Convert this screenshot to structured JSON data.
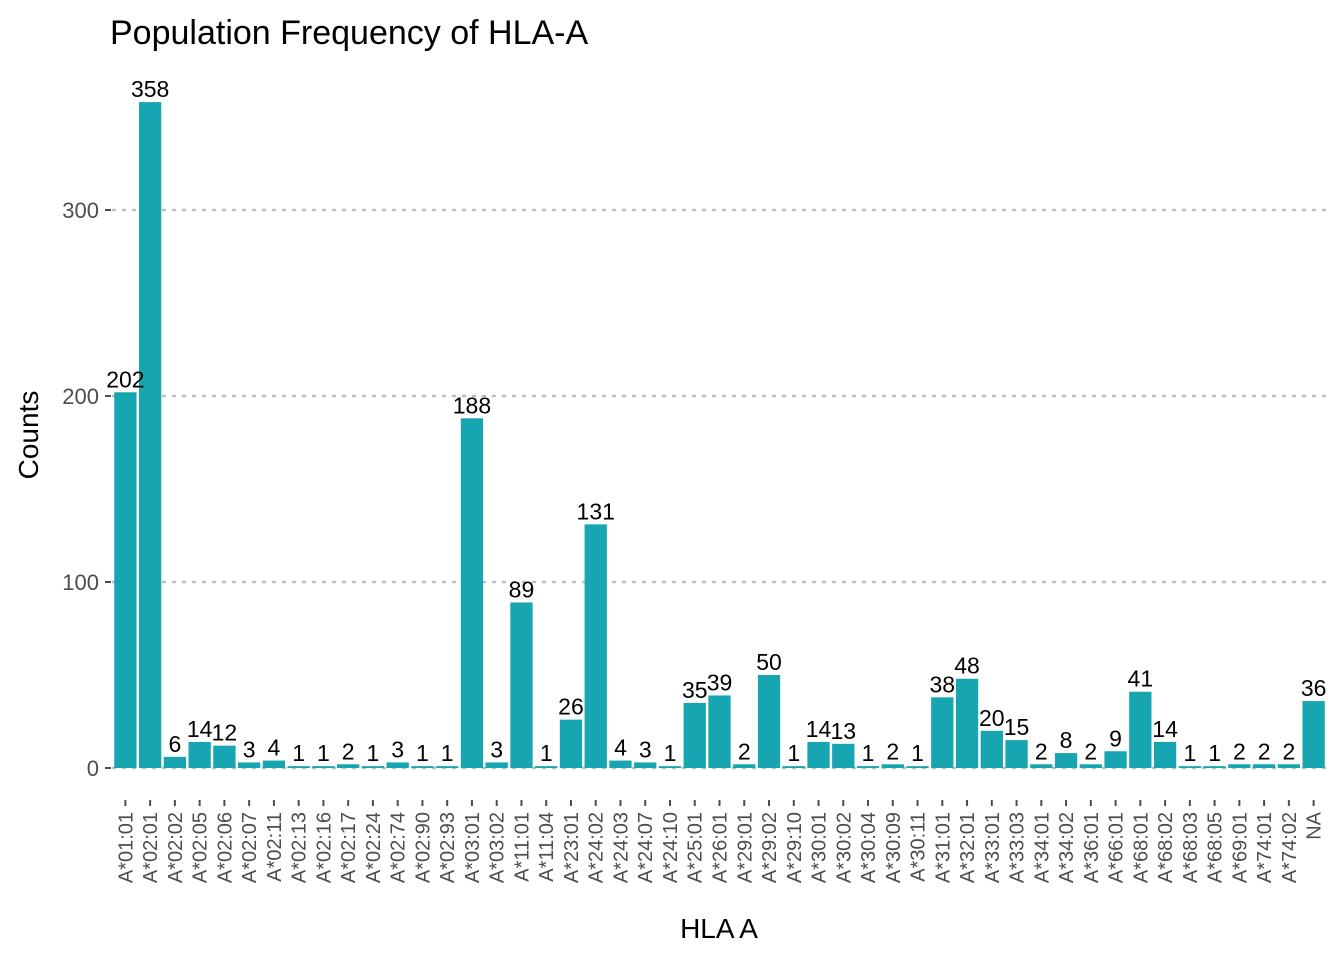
{
  "chart_data": {
    "type": "bar",
    "title": "Population Frequency of HLA-A",
    "xlabel": "HLA A",
    "ylabel": "Counts",
    "ylim": [
      0,
      370
    ],
    "yticks": [
      0,
      100,
      200,
      300
    ],
    "grid": "horizontal-dotted",
    "bar_color": "#17A5B1",
    "categories": [
      "A*01:01",
      "A*02:01",
      "A*02:02",
      "A*02:05",
      "A*02:06",
      "A*02:07",
      "A*02:11",
      "A*02:13",
      "A*02:16",
      "A*02:17",
      "A*02:24",
      "A*02:74",
      "A*02:90",
      "A*02:93",
      "A*03:01",
      "A*03:02",
      "A*11:01",
      "A*11:04",
      "A*23:01",
      "A*24:02",
      "A*24:03",
      "A*24:07",
      "A*24:10",
      "A*25:01",
      "A*26:01",
      "A*29:01",
      "A*29:02",
      "A*29:10",
      "A*30:01",
      "A*30:02",
      "A*30:04",
      "A*30:09",
      "A*30:11",
      "A*31:01",
      "A*32:01",
      "A*33:01",
      "A*33:03",
      "A*34:01",
      "A*34:02",
      "A*36:01",
      "A*66:01",
      "A*68:01",
      "A*68:02",
      "A*68:03",
      "A*68:05",
      "A*69:01",
      "A*74:01",
      "A*74:02",
      "NA"
    ],
    "values": [
      202,
      358,
      6,
      14,
      12,
      3,
      4,
      1,
      1,
      2,
      1,
      3,
      1,
      1,
      188,
      3,
      89,
      1,
      26,
      131,
      4,
      3,
      1,
      35,
      39,
      2,
      50,
      1,
      14,
      13,
      1,
      2,
      1,
      38,
      48,
      20,
      15,
      2,
      8,
      2,
      9,
      41,
      14,
      1,
      1,
      2,
      2,
      2,
      36
    ]
  }
}
